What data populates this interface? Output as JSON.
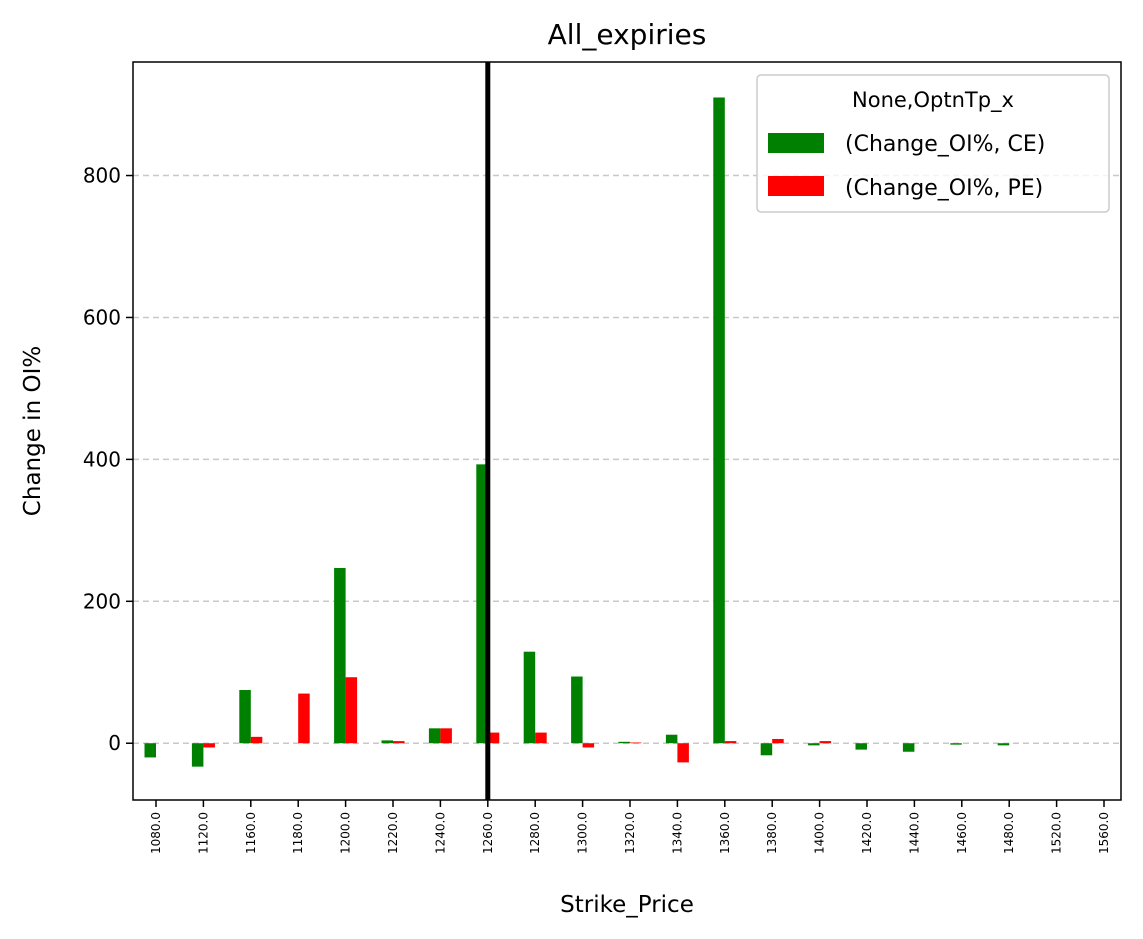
{
  "chart_data": {
    "type": "bar",
    "title": "All_expiries",
    "xlabel": "Strike_Price",
    "ylabel": "Change in OI%",
    "categories": [
      "1080.0",
      "1120.0",
      "1160.0",
      "1180.0",
      "1200.0",
      "1220.0",
      "1240.0",
      "1260.0",
      "1280.0",
      "1300.0",
      "1320.0",
      "1340.0",
      "1360.0",
      "1380.0",
      "1400.0",
      "1420.0",
      "1440.0",
      "1460.0",
      "1480.0",
      "1520.0",
      "1560.0"
    ],
    "series": [
      {
        "name": " (Change_OI%, CE)",
        "color": "#008000",
        "values": [
          -20,
          -33,
          75,
          0,
          247,
          4,
          21,
          393,
          129,
          94,
          2,
          12,
          910,
          -17,
          -3,
          -9,
          -12,
          -2,
          -3,
          0,
          0
        ]
      },
      {
        "name": " (Change_OI%, PE)",
        "color": "#ff0000",
        "values": [
          0,
          -6,
          9,
          70,
          93,
          3,
          21,
          15,
          15,
          -6,
          1,
          -27,
          3,
          6,
          3,
          0,
          0,
          0,
          0,
          0,
          0
        ]
      }
    ],
    "ylim": [
      -80,
      960
    ],
    "yticks": [
      0,
      200,
      400,
      600,
      800
    ],
    "grid": "y-dashed",
    "vline_category": "1260.0",
    "legend": {
      "title": "None,OptnTp_x",
      "placement": "top-right"
    }
  }
}
